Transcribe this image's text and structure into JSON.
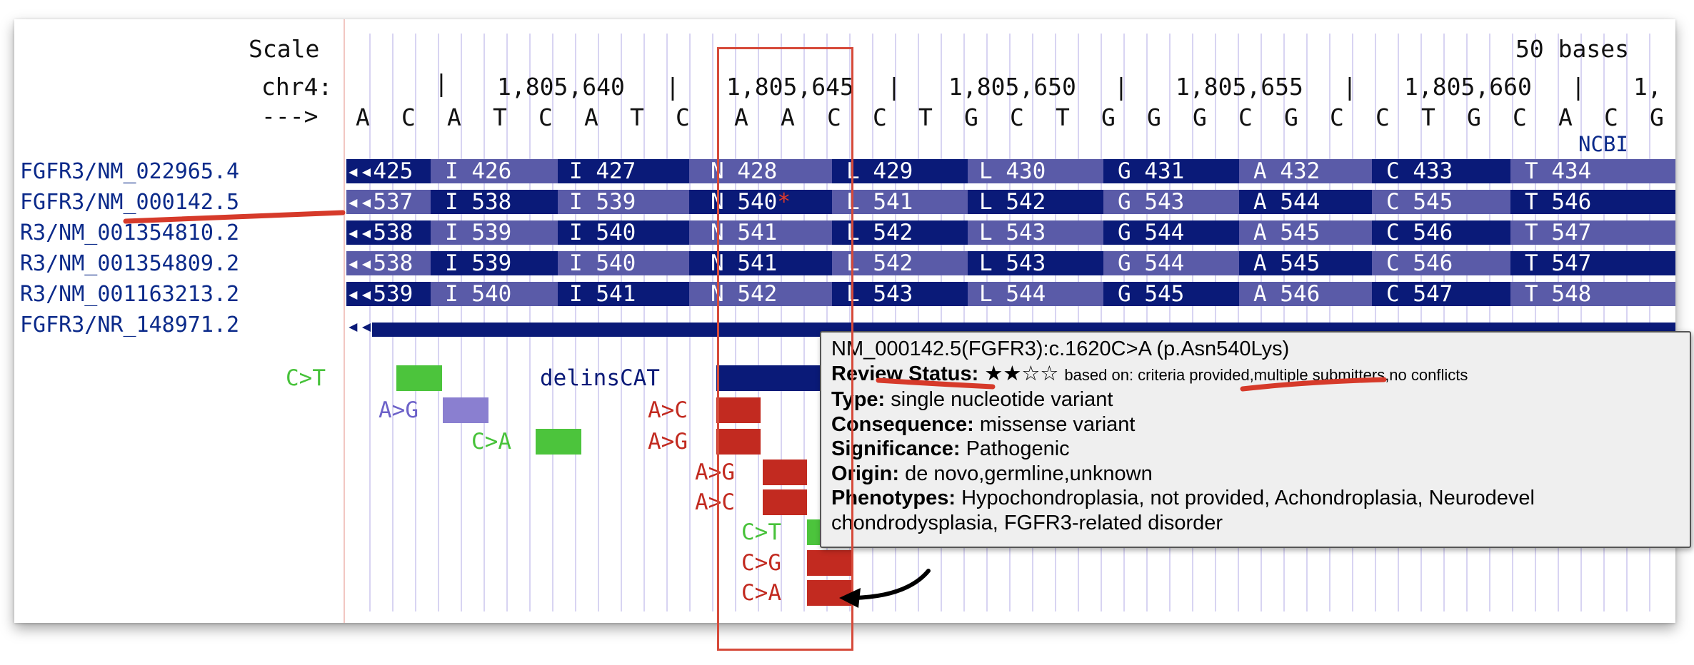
{
  "ruler": {
    "scale_label": "Scale",
    "scale_value": "50 bases",
    "chrom_label": "chr4:",
    "strand_label": "--->",
    "positions": [
      "1,805,640",
      "1,805,645",
      "1,805,650",
      "1,805,655",
      "1,805,660",
      "1,"
    ],
    "bases": [
      "A",
      "C",
      "A",
      "T",
      "C",
      "A",
      "T",
      "C",
      "A",
      "A",
      "C",
      "C",
      "T",
      "G",
      "C",
      "T",
      "G",
      "G",
      "G",
      "C",
      "G",
      "C",
      "C",
      "T",
      "G",
      "C",
      "A",
      "C",
      "G"
    ]
  },
  "ncbi_label": "NCBI",
  "transcripts": [
    {
      "label": "FGFR3/NM_022965.4",
      "cells": [
        "425",
        "I 426",
        "I 427",
        "N 428",
        "L 429",
        "L 430",
        "G 431",
        "A 432",
        "C 433",
        "T 434"
      ]
    },
    {
      "label": "FGFR3/NM_000142.5",
      "cells": [
        "537",
        "I 538",
        "I 539",
        "N 540",
        "L 541",
        "L 542",
        "G 543",
        "A 544",
        "C 545",
        "T 546"
      ]
    },
    {
      "label": "R3/NM_001354810.2",
      "cells": [
        "538",
        "I 539",
        "I 540",
        "N 541",
        "L 542",
        "L 543",
        "G 544",
        "A 545",
        "C 546",
        "T 547"
      ]
    },
    {
      "label": "R3/NM_001354809.2",
      "cells": [
        "538",
        "I 539",
        "I 540",
        "N 541",
        "L 542",
        "L 543",
        "G 544",
        "A 545",
        "C 546",
        "T 547"
      ]
    },
    {
      "label": "R3/NM_001163213.2",
      "cells": [
        "539",
        "I 540",
        "I 541",
        "N 542",
        "L 543",
        "L 544",
        "G 545",
        "A 546",
        "C 547",
        "T 548"
      ]
    },
    {
      "label": "FGFR3/NR_148971.2",
      "cells": []
    }
  ],
  "variants": {
    "c_t_1": "C>T",
    "a_g_1": "A>G",
    "c_a_1": "C>A",
    "delins": "delinsCAT",
    "a_c_2": "A>C",
    "a_g_2": "A>G",
    "a_g_3": "A>G",
    "a_c_3": "A>C",
    "c_t_2": "C>T",
    "c_g_1": "C>G",
    "c_a_2": "C>A"
  },
  "tooltip": {
    "title": "NM_000142.5(FGFR3):c.1620C>A (p.Asn540Lys)",
    "review_label": "Review Status:",
    "review_stars": "★★☆☆",
    "review_detail": "based on: criteria provided,multiple submitters,no conflicts",
    "type_label": "Type:",
    "type_value": "single nucleotide variant",
    "consequence_label": "Consequence:",
    "consequence_value": "missense variant",
    "significance_label": "Significance:",
    "significance_value": "Pathogenic",
    "origin_label": "Origin:",
    "origin_value": "de novo,germline,unknown",
    "phenotypes_label": "Phenotypes:",
    "phenotypes_value_1": "Hypochondroplasia, not provided, Achondroplasia, Neurodevel",
    "phenotypes_value_2": "chondrodysplasia, FGFR3-related disorder"
  },
  "colors": {
    "dark_cell": "#0a1a78",
    "light_cell": "#5a5ba8",
    "highlight_box": "#d64a3a",
    "annotation_stroke": "#d63a2a",
    "pathogenic": "#c22a20",
    "benign": "#4cc43c",
    "uncertain": "#8a7fd0",
    "delins": "#0a1a78"
  }
}
